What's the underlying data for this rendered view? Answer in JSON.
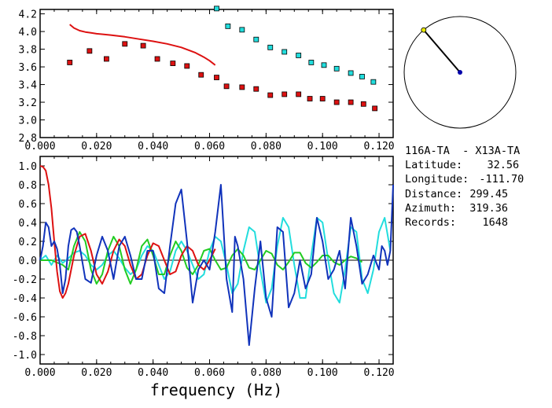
{
  "info": {
    "station_pair": "116A-TA  - X13A-TA",
    "latitude_label": "Latitude:",
    "latitude": "32.56",
    "longitude_label": "Longitude:",
    "longitude": "-111.70",
    "distance_label": "Distance:",
    "distance": "299.45",
    "azimuth_label": "Azimuth:",
    "azimuth": "319.36",
    "records_label": "Records:",
    "records": "1648"
  },
  "azimuth_map": {
    "azimuth_deg": 319.36,
    "ray_color": "#000000",
    "station_color": "#e6e600",
    "center_color": "#0000aa"
  },
  "chart_data": [
    {
      "type": "scatter",
      "xlim": [
        0.0,
        0.125
      ],
      "ylim": [
        2.8,
        4.25
      ],
      "x_ticks": [
        "0.000",
        "0.020",
        "0.040",
        "0.060",
        "0.080",
        "0.100",
        "0.120"
      ],
      "x_tick_values": [
        0,
        0.02,
        0.04,
        0.06,
        0.08,
        0.1,
        0.12
      ],
      "y_ticks": [
        "2.8",
        "3.0",
        "3.2",
        "3.4",
        "3.6",
        "3.8",
        "4.0",
        "4.2"
      ],
      "y_tick_values": [
        2.8,
        3.0,
        3.2,
        3.4,
        3.6,
        3.8,
        4.0,
        4.2
      ],
      "series": [
        {
          "kind": "squares",
          "color": "#dd1111",
          "x": [
            0.0105,
            0.0175,
            0.0235,
            0.03,
            0.0365,
            0.0415,
            0.047,
            0.052,
            0.057,
            0.0625,
            0.066,
            0.0715,
            0.0765,
            0.0815,
            0.0865,
            0.0915,
            0.0955,
            0.1,
            0.105,
            0.11,
            0.1145,
            0.1185
          ],
          "y": [
            3.65,
            3.78,
            3.69,
            3.86,
            3.84,
            3.69,
            3.64,
            3.61,
            3.51,
            3.48,
            3.38,
            3.37,
            3.35,
            3.28,
            3.29,
            3.29,
            3.24,
            3.24,
            3.2,
            3.2,
            3.18,
            3.13
          ]
        },
        {
          "kind": "squares",
          "color": "#22dddd",
          "x": [
            0.0625,
            0.0665,
            0.0715,
            0.0765,
            0.0815,
            0.0865,
            0.0915,
            0.096,
            0.1005,
            0.105,
            0.11,
            0.114,
            0.118
          ],
          "y": [
            4.26,
            4.06,
            4.02,
            3.91,
            3.82,
            3.77,
            3.73,
            3.65,
            3.62,
            3.58,
            3.53,
            3.49,
            3.43
          ]
        },
        {
          "kind": "line",
          "color": "#dd1111",
          "x": [
            0.0105,
            0.012,
            0.014,
            0.016,
            0.018,
            0.02,
            0.025,
            0.03,
            0.035,
            0.04,
            0.045,
            0.05,
            0.055,
            0.058,
            0.06,
            0.062
          ],
          "y": [
            4.08,
            4.04,
            4.01,
            3.995,
            3.985,
            3.975,
            3.96,
            3.94,
            3.915,
            3.89,
            3.86,
            3.82,
            3.76,
            3.71,
            3.67,
            3.62
          ]
        }
      ]
    },
    {
      "type": "line",
      "xlim": [
        0.0,
        0.125
      ],
      "ylim": [
        -1.1,
        1.1
      ],
      "xlabel": "frequency (Hz)",
      "x_ticks": [
        "0.000",
        "0.020",
        "0.040",
        "0.060",
        "0.080",
        "0.100",
        "0.120"
      ],
      "x_tick_values": [
        0,
        0.02,
        0.04,
        0.06,
        0.08,
        0.1,
        0.12
      ],
      "y_ticks": [
        "1.0",
        "0.8",
        "0.6",
        "0.4",
        "0.2",
        "0.0",
        "-0.2",
        "-0.4",
        "-0.6",
        "-0.8",
        "-1.0"
      ],
      "y_tick_values": [
        1.0,
        0.8,
        0.6,
        0.4,
        0.2,
        0.0,
        -0.2,
        -0.4,
        -0.6,
        -0.8,
        -1.0
      ],
      "series": [
        {
          "color": "#22dddd",
          "x": [
            0.0,
            0.002,
            0.004,
            0.006,
            0.008,
            0.01,
            0.012,
            0.014,
            0.016,
            0.018,
            0.02,
            0.022,
            0.024,
            0.026,
            0.028,
            0.03,
            0.032,
            0.034,
            0.036,
            0.038,
            0.04,
            0.042,
            0.044,
            0.046,
            0.048,
            0.05,
            0.052,
            0.054,
            0.056,
            0.058,
            0.06,
            0.062,
            0.064,
            0.066,
            0.068,
            0.07,
            0.072,
            0.074,
            0.076,
            0.078,
            0.08,
            0.082,
            0.084,
            0.086,
            0.088,
            0.09,
            0.092,
            0.094,
            0.096,
            0.098,
            0.1,
            0.102,
            0.104,
            0.106,
            0.108,
            0.11,
            0.112,
            0.114,
            0.116,
            0.118,
            0.12,
            0.122,
            0.124
          ],
          "y": [
            0.0,
            0.05,
            -0.05,
            0.05,
            -0.03,
            0.02,
            0.08,
            0.1,
            0.05,
            -0.05,
            -0.1,
            -0.05,
            0.05,
            0.1,
            0.02,
            -0.08,
            -0.15,
            -0.1,
            0.05,
            0.15,
            0.1,
            -0.05,
            -0.2,
            -0.12,
            0.1,
            0.2,
            0.1,
            -0.05,
            -0.2,
            -0.15,
            0.1,
            0.25,
            0.2,
            -0.05,
            -0.35,
            -0.25,
            0.1,
            0.35,
            0.3,
            -0.1,
            -0.45,
            -0.3,
            0.15,
            0.45,
            0.35,
            -0.05,
            -0.4,
            -0.4,
            0.05,
            0.45,
            0.4,
            0.0,
            -0.35,
            -0.45,
            -0.1,
            0.35,
            0.3,
            -0.2,
            -0.35,
            -0.1,
            0.3,
            0.45,
            0.1
          ]
        },
        {
          "color": "#22cc22",
          "x": [
            0.0,
            0.004,
            0.008,
            0.01,
            0.012,
            0.014,
            0.016,
            0.018,
            0.02,
            0.022,
            0.024,
            0.026,
            0.028,
            0.03,
            0.032,
            0.034,
            0.036,
            0.038,
            0.04,
            0.042,
            0.044,
            0.046,
            0.048,
            0.05,
            0.052,
            0.054,
            0.056,
            0.058,
            0.06,
            0.062,
            0.064,
            0.066,
            0.068,
            0.07,
            0.072,
            0.074,
            0.076,
            0.078,
            0.08,
            0.082,
            0.084,
            0.086,
            0.088,
            0.09,
            0.092,
            0.094,
            0.096,
            0.098,
            0.1,
            0.102,
            0.104,
            0.106,
            0.108,
            0.11,
            0.112,
            0.114
          ],
          "y": [
            0.0,
            0.0,
            -0.05,
            -0.1,
            0.15,
            0.3,
            0.2,
            -0.1,
            -0.25,
            -0.15,
            0.1,
            0.25,
            0.15,
            -0.1,
            -0.25,
            -0.1,
            0.15,
            0.22,
            0.05,
            -0.15,
            -0.15,
            0.05,
            0.2,
            0.1,
            -0.08,
            -0.15,
            -0.05,
            0.1,
            0.12,
            0.0,
            -0.1,
            -0.08,
            0.05,
            0.12,
            0.05,
            -0.08,
            -0.1,
            0.0,
            0.1,
            0.07,
            -0.05,
            -0.1,
            -0.02,
            0.08,
            0.08,
            -0.03,
            -0.08,
            -0.02,
            0.05,
            0.05,
            -0.02,
            -0.05,
            0.0,
            0.04,
            0.02,
            -0.02
          ]
        },
        {
          "color": "#dd1111",
          "x": [
            0.0,
            0.001,
            0.002,
            0.003,
            0.004,
            0.005,
            0.006,
            0.007,
            0.008,
            0.009,
            0.01,
            0.011,
            0.012,
            0.014,
            0.016,
            0.018,
            0.02,
            0.022,
            0.024,
            0.026,
            0.028,
            0.03,
            0.032,
            0.034,
            0.036,
            0.038,
            0.04,
            0.042,
            0.044,
            0.046,
            0.048,
            0.05,
            0.052,
            0.054,
            0.056,
            0.058,
            0.06,
            0.062
          ],
          "y": [
            1.0,
            0.99,
            0.95,
            0.8,
            0.55,
            0.2,
            -0.12,
            -0.33,
            -0.4,
            -0.35,
            -0.25,
            -0.1,
            0.05,
            0.25,
            0.28,
            0.1,
            -0.15,
            -0.25,
            -0.12,
            0.1,
            0.22,
            0.15,
            -0.05,
            -0.2,
            -0.15,
            0.05,
            0.18,
            0.15,
            0.0,
            -0.15,
            -0.12,
            0.05,
            0.15,
            0.1,
            -0.05,
            -0.1,
            0.0,
            0.12
          ]
        },
        {
          "color": "#1133bb",
          "x": [
            0.0,
            0.001,
            0.002,
            0.003,
            0.004,
            0.005,
            0.006,
            0.007,
            0.008,
            0.009,
            0.01,
            0.011,
            0.012,
            0.013,
            0.014,
            0.016,
            0.018,
            0.02,
            0.022,
            0.024,
            0.026,
            0.028,
            0.03,
            0.032,
            0.034,
            0.036,
            0.038,
            0.04,
            0.042,
            0.044,
            0.046,
            0.048,
            0.05,
            0.052,
            0.054,
            0.056,
            0.058,
            0.06,
            0.062,
            0.064,
            0.066,
            0.068,
            0.069,
            0.07,
            0.072,
            0.074,
            0.076,
            0.078,
            0.08,
            0.082,
            0.084,
            0.086,
            0.088,
            0.09,
            0.092,
            0.094,
            0.096,
            0.098,
            0.1,
            0.102,
            0.104,
            0.106,
            0.108,
            0.11,
            0.112,
            0.114,
            0.116,
            0.118,
            0.12,
            0.121,
            0.122,
            0.123,
            0.124,
            0.125
          ],
          "y": [
            0.0,
            0.15,
            0.4,
            0.35,
            0.15,
            0.2,
            0.12,
            -0.05,
            -0.35,
            -0.2,
            0.15,
            0.32,
            0.34,
            0.3,
            0.15,
            -0.2,
            -0.24,
            0.05,
            0.25,
            0.1,
            -0.2,
            0.15,
            0.25,
            0.05,
            -0.2,
            -0.2,
            0.1,
            0.1,
            -0.3,
            -0.35,
            0.15,
            0.6,
            0.75,
            0.2,
            -0.45,
            -0.1,
            0.0,
            -0.1,
            0.3,
            0.8,
            -0.2,
            -0.55,
            0.25,
            0.15,
            -0.2,
            -0.9,
            -0.3,
            0.2,
            -0.4,
            -0.6,
            0.35,
            0.3,
            -0.5,
            -0.35,
            0.0,
            -0.3,
            -0.15,
            0.45,
            0.2,
            -0.2,
            -0.1,
            0.1,
            -0.3,
            0.45,
            0.15,
            -0.25,
            -0.15,
            0.05,
            -0.1,
            0.15,
            0.1,
            -0.05,
            0.1,
            0.8
          ]
        }
      ]
    }
  ]
}
